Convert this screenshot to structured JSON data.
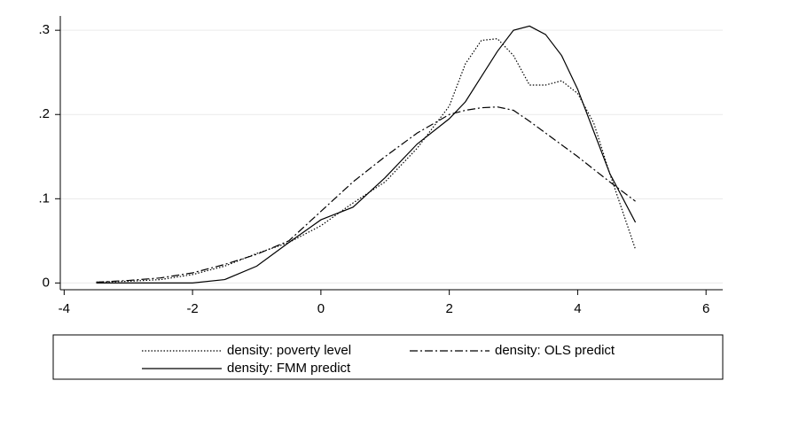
{
  "chart_data": {
    "type": "line",
    "x": [
      -3.5,
      -3,
      -2.5,
      -2,
      -1.5,
      -1,
      -0.5,
      0,
      0.5,
      1,
      1.5,
      2,
      2.25,
      2.5,
      2.75,
      3,
      3.25,
      3.5,
      3.75,
      4,
      4.25,
      4.5,
      4.9
    ],
    "series": [
      {
        "name": "density: poverty level",
        "color": "#000000",
        "linestyle": "dotted",
        "values": [
          0.001,
          0.002,
          0.004,
          0.01,
          0.02,
          0.035,
          0.048,
          0.068,
          0.095,
          0.12,
          0.16,
          0.21,
          0.26,
          0.288,
          0.29,
          0.27,
          0.235,
          0.235,
          0.24,
          0.225,
          0.19,
          0.13,
          0.04
        ]
      },
      {
        "name": "density: OLS predict",
        "color": "#000000",
        "linestyle": "dashdot",
        "values": [
          0.001,
          0.003,
          0.006,
          0.012,
          0.022,
          0.034,
          0.05,
          0.085,
          0.12,
          0.15,
          0.178,
          0.2,
          0.205,
          0.208,
          0.209,
          0.205,
          0.192,
          0.178,
          0.164,
          0.15,
          0.135,
          0.12,
          0.097
        ]
      },
      {
        "name": "density:  FMM predict",
        "color": "#000000",
        "linestyle": "solid",
        "values": [
          0,
          0,
          0,
          0,
          0.004,
          0.02,
          0.048,
          0.075,
          0.09,
          0.125,
          0.165,
          0.195,
          0.215,
          0.245,
          0.275,
          0.3,
          0.305,
          0.295,
          0.27,
          0.23,
          0.18,
          0.13,
          0.072
        ]
      }
    ],
    "xlim": [
      -4.06,
      6.26
    ],
    "xticks": [
      -4,
      -2,
      0,
      2,
      4,
      6
    ],
    "ylim": [
      -0.008,
      0.317
    ],
    "yticks": [
      0,
      {
        "value": 0.1,
        "label": ".1"
      },
      {
        "value": 0.2,
        "label": ".2"
      },
      {
        "value": 0.3,
        "label": ".3"
      }
    ],
    "grid": true,
    "legend": "bottom"
  }
}
